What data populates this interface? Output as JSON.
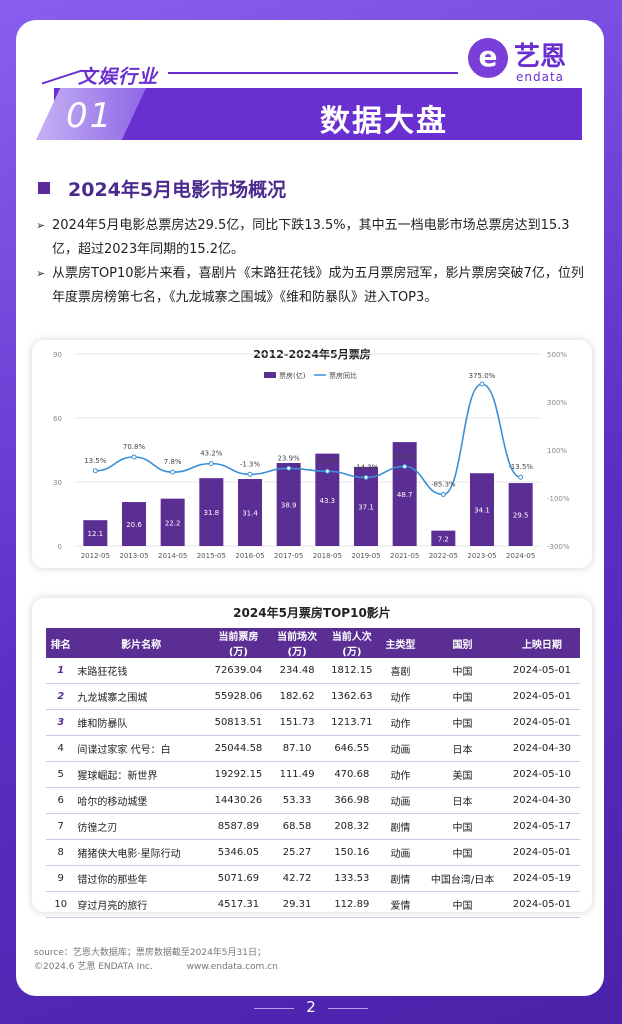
{
  "header": {
    "category": "文娱行业",
    "section_number": "01",
    "title": "数据大盘",
    "logo_cn": "艺恩",
    "logo_en": "endata",
    "logo_mark": "e"
  },
  "subheading": "2024年5月电影市场概况",
  "bullets": [
    "2024年5月电影总票房达29.5亿，同比下跌13.5%，其中五一档电影市场总票房达到15.3亿，超过2023年同期的15.2亿。",
    "从票房TOP10影片来看，喜剧片《末路狂花钱》成为五月票房冠军，影片票房突破7亿，位列年度票房榜第七名，《九龙城寨之围城》《维和防暴队》进入TOP3。"
  ],
  "chart_data": {
    "type": "bar",
    "title": "2012-2024年5月票房",
    "categories": [
      "2012-05",
      "2013-05",
      "2014-05",
      "2015-05",
      "2016-05",
      "2017-05",
      "2018-05",
      "2019-05",
      "2021-05",
      "2022-05",
      "2023-05",
      "2024-05"
    ],
    "series": [
      {
        "name": "票房(亿)",
        "type": "bar",
        "axis": "left",
        "values": [
          12.1,
          20.6,
          22.2,
          31.8,
          31.4,
          38.9,
          43.3,
          37.1,
          48.7,
          7.2,
          34.1,
          29.5
        ]
      },
      {
        "name": "票房同比",
        "type": "line",
        "axis": "right",
        "values": [
          13.5,
          70.8,
          7.8,
          43.2,
          -1.3,
          23.9,
          11.3,
          -14.3,
          31.2,
          -85.3,
          375.0,
          -13.5
        ],
        "labels": [
          "13.5%",
          "70.8%",
          "7.8%",
          "43.2%",
          "-1.3%",
          "23.9%",
          "11.3%",
          "-14.3%",
          "31.2%",
          "-85.3%",
          "375.0%",
          "-13.5%"
        ]
      }
    ],
    "bar_labels": [
      "12.1",
      "20.6",
      "22.2",
      "31.8",
      "31.4",
      "38.9",
      "43.3",
      "37.1",
      "48.7",
      "7.2",
      "34.1",
      "29.5"
    ],
    "left_ticks": [
      "90",
      "60",
      "30",
      "0"
    ],
    "right_ticks": [
      "500%",
      "300%",
      "100%",
      "-100%",
      "-300%"
    ],
    "ylim_left": [
      0,
      90
    ],
    "ylim_right": [
      -300,
      500
    ],
    "legend": [
      "票房(亿)",
      "票房同比"
    ],
    "legend_position": "top-center",
    "colors": {
      "bar": "#5a2e93",
      "line": "#3b8fd6"
    }
  },
  "table": {
    "title": "2024年5月票房TOP10影片",
    "headers": [
      "排名",
      "影片名称",
      "当前票房\n(万)",
      "当前场次\n(万)",
      "当前人次\n(万)",
      "主类型",
      "国别",
      "上映日期"
    ],
    "rows": [
      [
        "1",
        "末路狂花钱",
        "72639.04",
        "234.48",
        "1812.15",
        "喜剧",
        "中国",
        "2024-05-01"
      ],
      [
        "2",
        "九龙城寨之围城",
        "55928.06",
        "182.62",
        "1362.63",
        "动作",
        "中国",
        "2024-05-01"
      ],
      [
        "3",
        "维和防暴队",
        "50813.51",
        "151.73",
        "1213.71",
        "动作",
        "中国",
        "2024-05-01"
      ],
      [
        "4",
        "间谍过家家 代号：白",
        "25044.58",
        "87.10",
        "646.55",
        "动画",
        "日本",
        "2024-04-30"
      ],
      [
        "5",
        "猩球崛起：新世界",
        "19292.15",
        "111.49",
        "470.68",
        "动作",
        "美国",
        "2024-05-10"
      ],
      [
        "6",
        "哈尔的移动城堡",
        "14430.26",
        "53.33",
        "366.98",
        "动画",
        "日本",
        "2024-04-30"
      ],
      [
        "7",
        "彷徨之刃",
        "8587.89",
        "68.58",
        "208.32",
        "剧情",
        "中国",
        "2024-05-17"
      ],
      [
        "8",
        "猪猪侠大电影·星际行动",
        "5346.05",
        "25.27",
        "150.16",
        "动画",
        "中国",
        "2024-05-01"
      ],
      [
        "9",
        "错过你的那些年",
        "5071.69",
        "42.72",
        "133.53",
        "剧情",
        "中国台湾/日本",
        "2024-05-19"
      ],
      [
        "10",
        "穿过月亮的旅行",
        "4517.31",
        "29.31",
        "112.89",
        "爱情",
        "中国",
        "2024-05-01"
      ]
    ]
  },
  "footer": {
    "source": "source：艺恩大数据库；票房数据截至2024年5月31日；",
    "copyright": "©2024.6 艺恩 ENDATA Inc.",
    "website": "www.endata.com.cn"
  },
  "page_number": "2"
}
